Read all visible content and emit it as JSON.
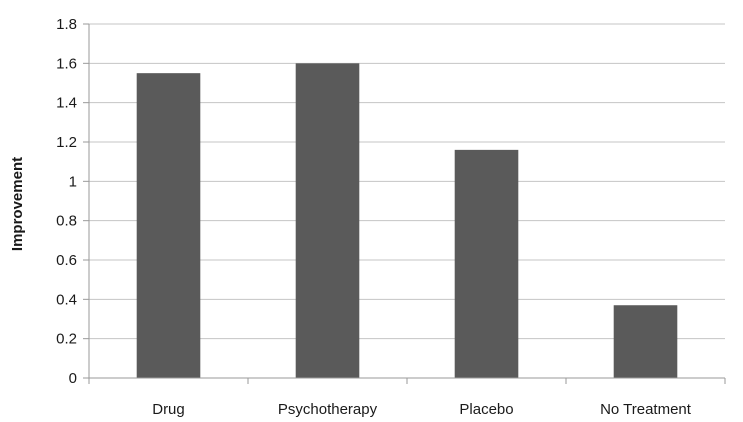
{
  "chart_data": {
    "type": "bar",
    "categories": [
      "Drug",
      "Psychotherapy",
      "Placebo",
      "No Treatment"
    ],
    "values": [
      1.55,
      1.6,
      1.16,
      0.37
    ],
    "title": "",
    "xlabel": "",
    "ylabel": "Improvement",
    "ylim": [
      0,
      1.8
    ],
    "yticks": [
      "0",
      "0.2",
      "0.4",
      "0.6",
      "0.8",
      "1",
      "1.2",
      "1.4",
      "1.6",
      "1.8"
    ],
    "grid": "horizontal",
    "legend": "none",
    "colors": {
      "bar": "#5a5a5a",
      "grid": "#c4c4c4",
      "axis": "#9a9a9a"
    }
  }
}
